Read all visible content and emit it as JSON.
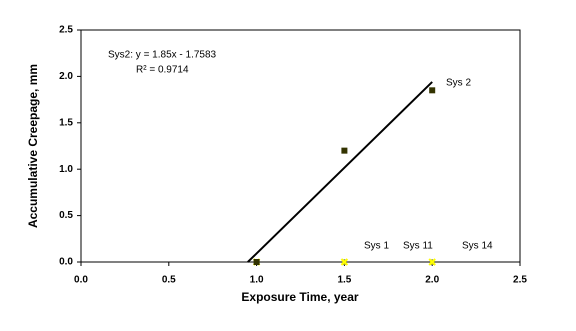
{
  "chart_data": {
    "type": "scatter",
    "x_label": "Exposure Time, year",
    "y_label": "Accumulative Creepage, mm",
    "xlim": [
      0,
      2.5
    ],
    "ylim": [
      0,
      2.5
    ],
    "xticks": [
      {
        "value": 0,
        "label": "0.0"
      },
      0.5,
      {
        "value": 1,
        "label": "1.0"
      },
      1.5,
      {
        "value": 2,
        "label": "2.0"
      },
      2.5
    ],
    "yticks": [
      {
        "value": 0,
        "label": "0.0"
      },
      0.5,
      {
        "value": 1,
        "label": "1.0"
      },
      1.5,
      {
        "value": 2,
        "label": "2.0"
      },
      2.5
    ],
    "series": [
      {
        "name": "Sys 2",
        "color": "#333300",
        "x": [
          1.0,
          1.5,
          2.0
        ],
        "values": [
          0,
          1.2,
          1.85
        ]
      },
      {
        "name": "Sys 1",
        "color": "#ffff00",
        "x": [
          1.0,
          1.5,
          2.0
        ],
        "values": [
          0,
          0,
          0
        ]
      },
      {
        "name": "Sys 11",
        "color": "#999933",
        "x": [
          1.0,
          1.5,
          2.0
        ],
        "values": [
          0,
          0,
          0
        ]
      },
      {
        "name": "Sys 14",
        "color": "#cccc00",
        "x": [
          1.0,
          1.5,
          2.0
        ],
        "values": [
          0,
          0,
          0
        ]
      }
    ],
    "trendline": {
      "x": [
        0.95,
        2.0
      ],
      "values": [
        0,
        1.94
      ],
      "color": "#000000",
      "equation": "Sys2: y = 1.85x - 1.7583",
      "r_squared": "R² = 0.9714"
    }
  }
}
